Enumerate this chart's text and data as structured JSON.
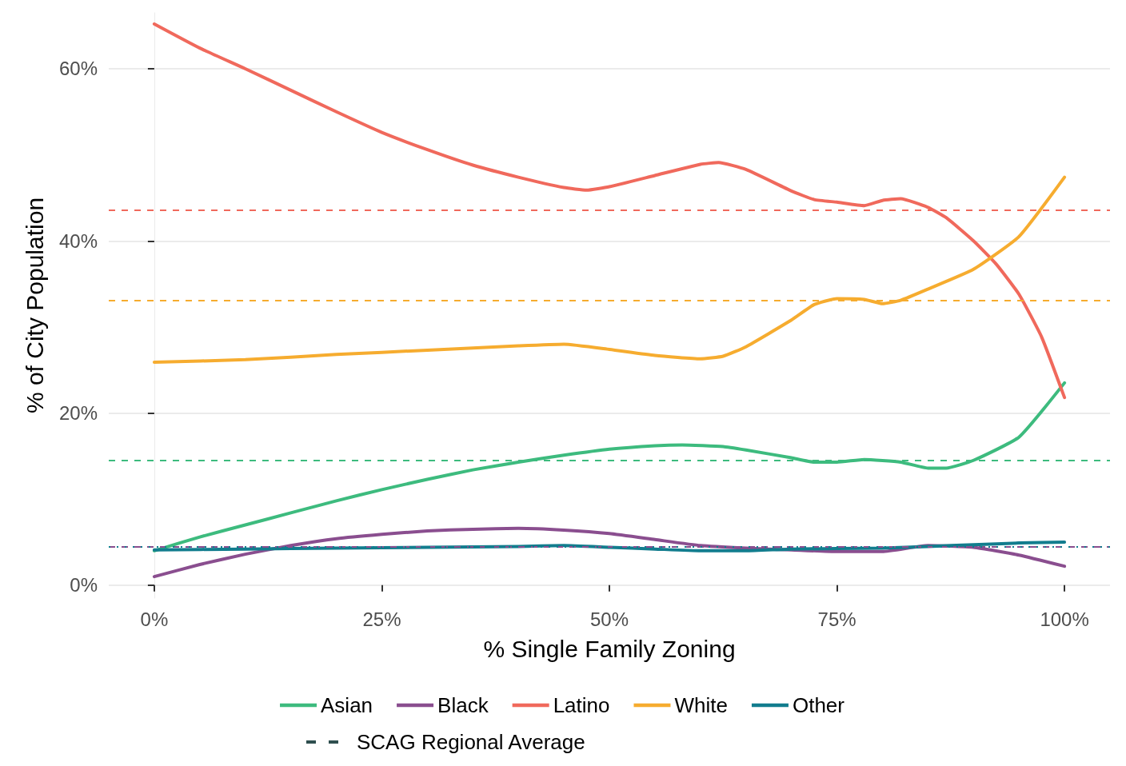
{
  "chart_data": {
    "type": "line",
    "xlabel": "% Single Family Zoning",
    "ylabel": "% of City Population",
    "xlim": [
      -5,
      105
    ],
    "ylim": [
      -1.5,
      66.5
    ],
    "xticks": [
      {
        "value": 0,
        "label": "0%"
      },
      {
        "value": 25,
        "label": "25%"
      },
      {
        "value": 50,
        "label": "50%"
      },
      {
        "value": 75,
        "label": "75%"
      },
      {
        "value": 100,
        "label": "100%"
      }
    ],
    "yticks": [
      {
        "value": 0,
        "label": "0%"
      },
      {
        "value": 20,
        "label": "20%"
      },
      {
        "value": 40,
        "label": "40%"
      },
      {
        "value": 60,
        "label": "60%"
      }
    ],
    "grid": "y",
    "legend": "bottom",
    "marker": "none",
    "line_style": "solid",
    "series": [
      {
        "name": "Asian",
        "color": "#3dbb7e",
        "x": [
          0,
          5,
          10,
          15,
          20,
          25,
          30,
          35,
          40,
          45,
          50,
          55,
          58,
          62.5,
          65,
          70,
          72.5,
          75,
          78,
          82,
          85,
          87,
          90,
          95,
          100
        ],
        "values": [
          4.0,
          5.6,
          7.0,
          8.4,
          9.8,
          11.1,
          12.3,
          13.4,
          14.3,
          15.1,
          15.8,
          16.2,
          16.3,
          16.1,
          15.7,
          14.8,
          14.3,
          14.3,
          14.6,
          14.3,
          13.6,
          13.6,
          14.5,
          17.2,
          23.5
        ]
      },
      {
        "name": "Black",
        "color": "#8a4e8f",
        "x": [
          0,
          5,
          10,
          15,
          20,
          25,
          30,
          35,
          40,
          45,
          50,
          55,
          60,
          65,
          70,
          75,
          80,
          85,
          90,
          95,
          100
        ],
        "values": [
          1.0,
          2.4,
          3.6,
          4.6,
          5.4,
          5.9,
          6.3,
          6.5,
          6.6,
          6.4,
          6.0,
          5.3,
          4.6,
          4.3,
          4.1,
          3.9,
          3.9,
          4.6,
          4.4,
          3.5,
          2.2
        ]
      },
      {
        "name": "Latino",
        "color": "#f0695c",
        "x": [
          0,
          5,
          10,
          15,
          20,
          25,
          30,
          35,
          40,
          45,
          47.5,
          50,
          55,
          60,
          62,
          65,
          70,
          72.5,
          75,
          78,
          80,
          82,
          85,
          87,
          90,
          92.5,
          95,
          97.5,
          100
        ],
        "values": [
          65.2,
          62.4,
          60.0,
          57.5,
          55.0,
          52.6,
          50.6,
          48.8,
          47.4,
          46.2,
          45.9,
          46.3,
          47.6,
          48.9,
          49.1,
          48.3,
          45.8,
          44.8,
          44.5,
          44.1,
          44.7,
          44.9,
          43.9,
          42.7,
          40.0,
          37.3,
          33.8,
          28.8,
          21.8
        ]
      },
      {
        "name": "White",
        "color": "#f6ac2f",
        "x": [
          0,
          10,
          20,
          30,
          40,
          45,
          50,
          55,
          60,
          62.5,
          65,
          70,
          72.5,
          75,
          78,
          80,
          82,
          85,
          90,
          95,
          100
        ],
        "values": [
          25.9,
          26.2,
          26.8,
          27.3,
          27.8,
          28.0,
          27.4,
          26.7,
          26.3,
          26.6,
          27.7,
          30.8,
          32.6,
          33.3,
          33.2,
          32.7,
          33.1,
          34.4,
          36.7,
          40.5,
          47.4
        ]
      },
      {
        "name": "Other",
        "color": "#127d8e",
        "x": [
          0,
          10,
          20,
          30,
          40,
          45,
          50,
          55,
          60,
          65,
          70,
          80,
          85,
          90,
          95,
          100
        ],
        "values": [
          4.1,
          4.2,
          4.3,
          4.4,
          4.5,
          4.6,
          4.4,
          4.2,
          4.0,
          4.0,
          4.2,
          4.3,
          4.5,
          4.7,
          4.9,
          5.0
        ]
      },
      {
        "name": "SCAG Regional Average",
        "color": "#2f4f4f",
        "line_style": "dashed"
      }
    ],
    "ref_lines": [
      {
        "axis": "y",
        "value": 43.6,
        "label": null,
        "color": "#f0695c",
        "line_style": "dashed"
      },
      {
        "axis": "y",
        "value": 33.1,
        "label": null,
        "color": "#f6ac2f",
        "line_style": "dashed"
      },
      {
        "axis": "y",
        "value": 14.5,
        "label": null,
        "color": "#3dbb7e",
        "line_style": "dashed"
      },
      {
        "axis": "y",
        "value": 4.5,
        "label": null,
        "color": "#8a4e8f",
        "line_style": "dashed"
      },
      {
        "axis": "y",
        "value": 4.5,
        "label": null,
        "color": "#127d8e",
        "line_style": "dotted"
      }
    ]
  }
}
